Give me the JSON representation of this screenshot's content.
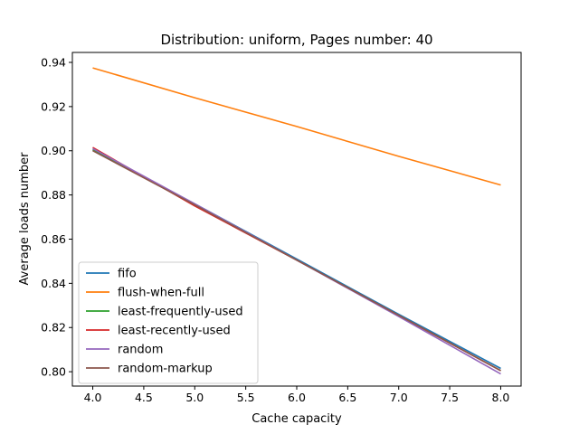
{
  "chart_data": {
    "type": "line",
    "title": "Distribution: uniform, Pages number: 40",
    "xlabel": "Cache capacity",
    "ylabel": "Average loads number",
    "xlim": [
      3.8,
      8.2
    ],
    "ylim": [
      0.7935,
      0.9445
    ],
    "xticks": [
      "4.0",
      "4.5",
      "5.0",
      "5.5",
      "6.0",
      "6.5",
      "7.0",
      "7.5",
      "8.0"
    ],
    "yticks": [
      "0.80",
      "0.82",
      "0.84",
      "0.86",
      "0.88",
      "0.90",
      "0.92",
      "0.94"
    ],
    "legend_position": "lower-left",
    "grid": false,
    "series": [
      {
        "name": "fifo",
        "color": "#1f77b4",
        "x": [
          4,
          5,
          6,
          7,
          8
        ],
        "y": [
          0.9005,
          0.876,
          0.851,
          0.826,
          0.8015
        ]
      },
      {
        "name": "flush-when-full",
        "color": "#ff7f0e",
        "x": [
          4,
          5,
          6,
          7,
          8
        ],
        "y": [
          0.9375,
          0.924,
          0.911,
          0.8975,
          0.8845
        ]
      },
      {
        "name": "least-frequently-used",
        "color": "#2ca02c",
        "x": [
          4,
          5,
          6,
          7,
          8
        ],
        "y": [
          0.9005,
          0.8755,
          0.8505,
          0.8255,
          0.8005
        ]
      },
      {
        "name": "least-recently-used",
        "color": "#d62728",
        "x": [
          4,
          5,
          6,
          7,
          8
        ],
        "y": [
          0.9015,
          0.875,
          0.8505,
          0.8255,
          0.8005
        ]
      },
      {
        "name": "random",
        "color": "#9467bd",
        "x": [
          4,
          5,
          6,
          7,
          8
        ],
        "y": [
          0.901,
          0.876,
          0.8505,
          0.825,
          0.799
        ]
      },
      {
        "name": "random-markup",
        "color": "#8c564b",
        "x": [
          4,
          5,
          6,
          7,
          8
        ],
        "y": [
          0.9,
          0.8755,
          0.8505,
          0.8255,
          0.8005
        ]
      }
    ]
  }
}
